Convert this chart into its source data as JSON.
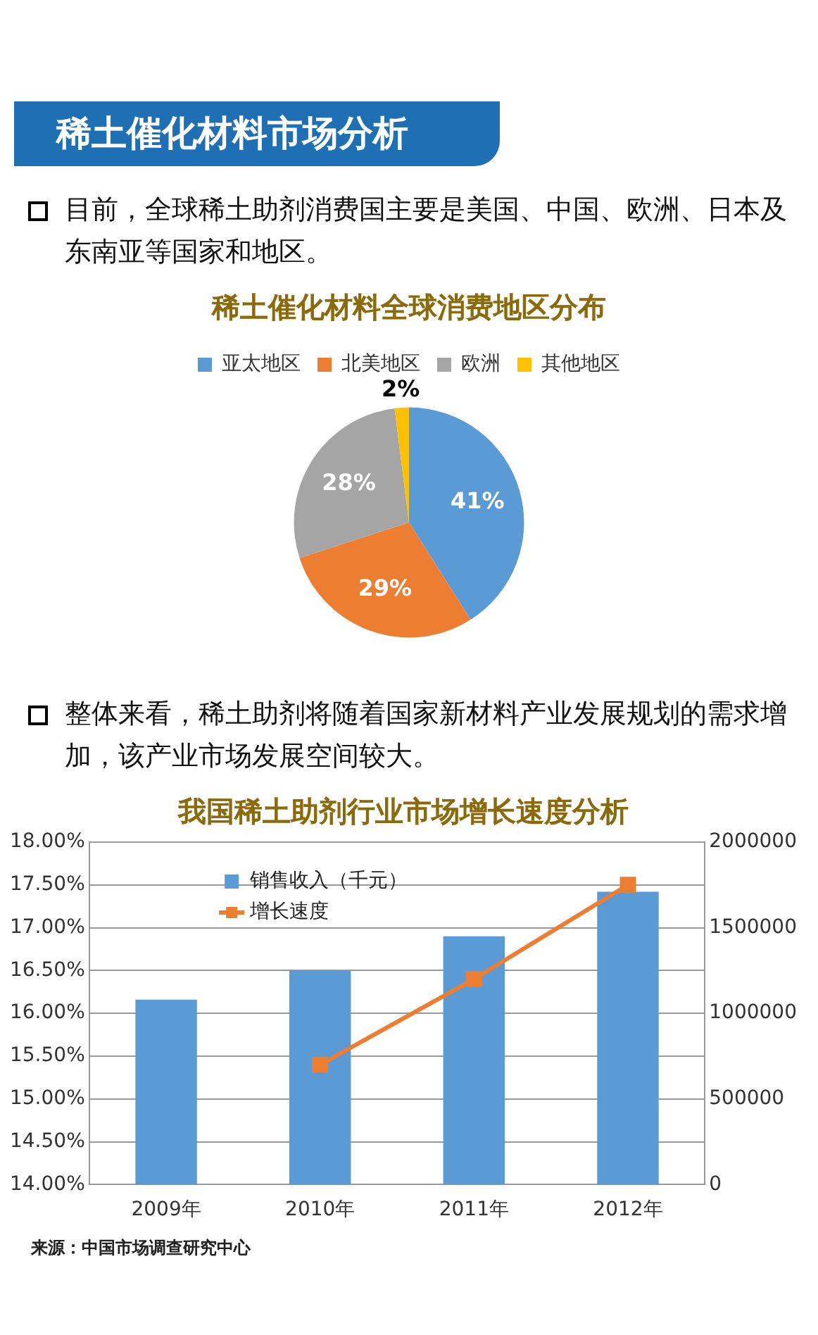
{
  "chart_data": [
    {
      "type": "pie",
      "title": "稀土催化材料全球消费地区分布",
      "annotations": [
        "稀土催化材料市场分析",
        "目前，全球稀土助剂消费国主要是美国、中国、欧洲、日本及东南亚等国家和地区。"
      ],
      "categories": [
        "亚太地区",
        "北美地区",
        "欧洲",
        "其他地区"
      ],
      "values": [
        41,
        29,
        28,
        2
      ],
      "colors": [
        "#5b9bd5",
        "#ed7d31",
        "#a5a5a5",
        "#ffc000"
      ],
      "value_labels": [
        "41%",
        "29%",
        "28%",
        "2%"
      ],
      "legend": "top"
    },
    {
      "type": "bar",
      "title": "我国稀土助剂行业市场增长速度分析",
      "annotations": [
        "整体来看，稀土助剂将随着国家新材料产业发展规划的需求增加，该产业市场发展空间较大。",
        "来源：中国市场调查研究中心"
      ],
      "categories": [
        "2009年",
        "2010年",
        "2011年",
        "2012年"
      ],
      "series": [
        {
          "name": "销售收入（千元）",
          "type": "bar",
          "axis": "y2",
          "color": "#5b9bd5",
          "values": [
            1080000,
            1250000,
            1450000,
            1710000
          ]
        },
        {
          "name": "增长速度",
          "type": "line",
          "axis": "y",
          "color": "#ed7d31",
          "marker": "square",
          "values": [
            null,
            15.4,
            16.4,
            17.5
          ]
        }
      ],
      "ylim": [
        14,
        18
      ],
      "yticks": [
        {
          "value": 14,
          "label": "14.00%"
        },
        {
          "value": 14.5,
          "label": "14.50%"
        },
        {
          "value": 15,
          "label": "15.00%"
        },
        {
          "value": 15.5,
          "label": "15.50%"
        },
        {
          "value": 16,
          "label": "16.00%"
        },
        {
          "value": 16.5,
          "label": "16.50%"
        },
        {
          "value": 17,
          "label": "17.00%"
        },
        {
          "value": 17.5,
          "label": "17.50%"
        },
        {
          "value": 18,
          "label": "18.00%"
        }
      ],
      "y2lim": [
        0,
        2000000
      ],
      "y2ticks": [
        0,
        500000,
        1000000,
        1500000,
        2000000
      ],
      "grid": "y",
      "legend": "top left"
    }
  ]
}
